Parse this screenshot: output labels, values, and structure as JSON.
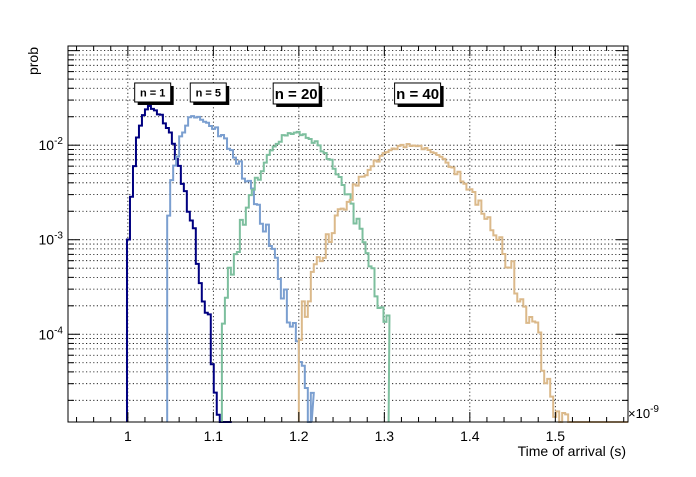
{
  "chart_data": {
    "type": "line",
    "title": "",
    "xlabel": "Time of arrival (s)",
    "ylabel": "prob",
    "x_multiplier_label": "×10",
    "x_multiplier_exponent": "-9",
    "xlim": [
      0.93,
      1.585
    ],
    "ylim": [
      1.18e-05,
      0.112
    ],
    "y_scale": "log",
    "grid": true,
    "x_ticks": [
      1.0,
      1.1,
      1.2,
      1.3,
      1.4,
      1.5
    ],
    "x_tick_labels": [
      "1",
      "1.1",
      "1.2",
      "1.3",
      "1.4",
      "1.5"
    ],
    "y_ticks": [
      0.0001,
      0.001,
      0.01
    ],
    "y_tick_labels": [
      {
        "base": "10",
        "exp": "-4"
      },
      {
        "base": "10",
        "exp": "-3"
      },
      {
        "base": "10",
        "exp": "-2"
      }
    ],
    "series": [
      {
        "color": "#000080",
        "t0": 0.999,
        "peak_x": 1.022,
        "peak_y": 0.0255,
        "sigma_left": 0.0095,
        "sigma_right": 0.0215,
        "x_end": 1.12,
        "noise_floor": 1.8e-05
      },
      {
        "color": "#7b9fd0",
        "t0": 1.046,
        "peak_x": 1.074,
        "peak_y": 0.0195,
        "sigma_left": 0.0135,
        "sigma_right": 0.0365,
        "x_end": 1.215,
        "noise_floor": 1.8e-05
      },
      {
        "color": "#7dbf9e",
        "t0": 1.11,
        "peak_x": 1.193,
        "peak_y": 0.0135,
        "sigma_left": 0.0285,
        "sigma_right": 0.0355,
        "x_end": 1.305,
        "noise_floor": 1.8e-05
      },
      {
        "color": "#dbb98a",
        "t0": 1.2,
        "peak_x": 1.325,
        "peak_y": 0.0099,
        "sigma_left": 0.0425,
        "sigma_right": 0.0495,
        "x_end": 1.585,
        "noise_floor": 1.8e-05
      }
    ],
    "annotations": [
      {
        "text": "n = 1",
        "x": 1.008,
        "y": 0.0455,
        "size": "small"
      },
      {
        "text": "n = 5",
        "x": 1.073,
        "y": 0.0455,
        "size": "small"
      },
      {
        "text": "n = 20",
        "x": 1.17,
        "y": 0.0455,
        "size": "large"
      },
      {
        "text": "n = 40",
        "x": 1.312,
        "y": 0.0455,
        "size": "large"
      }
    ]
  }
}
